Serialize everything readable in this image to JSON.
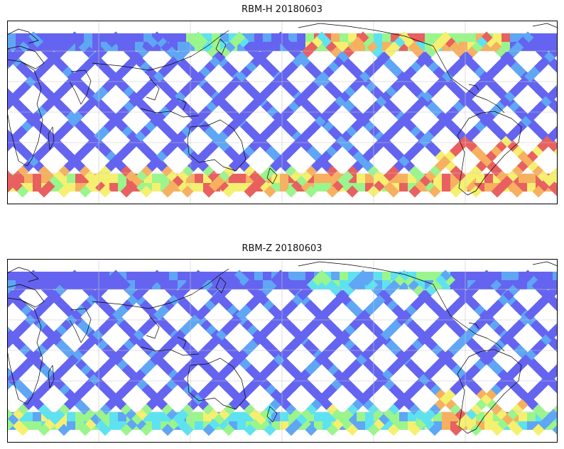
{
  "panels": [
    {
      "title": "RBM-H 20180603",
      "variant": "high_southern_values"
    },
    {
      "title": "RBM-Z 20180603",
      "variant": "mostly_low_values"
    }
  ],
  "colormap": [
    "#6464f0",
    "#5fa6f5",
    "#5ee2f0",
    "#9af58c",
    "#f5f070",
    "#f7b060",
    "#e86060"
  ],
  "gridlines": true
}
